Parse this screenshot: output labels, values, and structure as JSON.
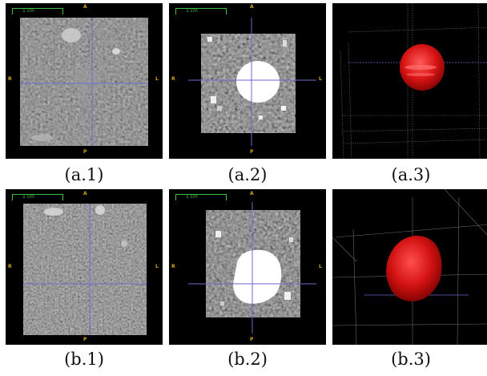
{
  "figure": {
    "rows": [
      {
        "panels": [
          {
            "caption": "(a.1)",
            "kind": "slice-raw",
            "scale_label": "1 cm",
            "orient": {
              "top": "A",
              "bottom": "P",
              "left": "R",
              "right": "L"
            }
          },
          {
            "caption": "(a.2)",
            "kind": "slice-mask",
            "scale_label": "1 cm",
            "orient": {
              "top": "A",
              "bottom": "P",
              "left": "R",
              "right": "L"
            }
          },
          {
            "caption": "(a.3)",
            "kind": "render-3d"
          }
        ]
      },
      {
        "panels": [
          {
            "caption": "(b.1)",
            "kind": "slice-raw",
            "scale_label": "1 cm",
            "orient": {
              "top": "A",
              "bottom": "P",
              "left": "R",
              "right": "L"
            }
          },
          {
            "caption": "(b.2)",
            "kind": "slice-mask",
            "scale_label": "1 cm",
            "orient": {
              "top": "A",
              "bottom": "P",
              "left": "R",
              "right": "L"
            }
          },
          {
            "caption": "(b.3)",
            "kind": "render-3d"
          }
        ]
      }
    ]
  },
  "colors": {
    "orientation_label": "#d8a418",
    "scale_bar": "#3fbf3f",
    "crosshair": "#6a6ad0",
    "lesion_3d": "#e01818",
    "mask": "#ffffff"
  }
}
